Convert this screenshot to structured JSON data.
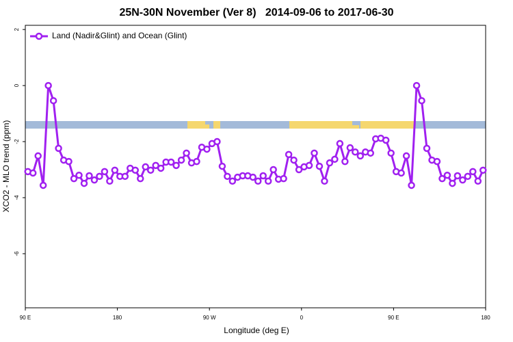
{
  "chart_data": {
    "type": "line",
    "title": "25N-30N November (Ver 8)   2014-09-06 to 2017-06-30",
    "xlabel": "Longitude (deg E)",
    "ylabel": "XCO2 - MLO trend (ppm)",
    "x": [
      92.5,
      97.5,
      102.5,
      107.5,
      112.5,
      117.5,
      122.5,
      127.5,
      132.5,
      137.5,
      142.5,
      147.5,
      152.5,
      157.5,
      162.5,
      167.5,
      172.5,
      177.5,
      182.5,
      187.5,
      192.5,
      197.5,
      202.5,
      207.5,
      212.5,
      217.5,
      222.5,
      227.5,
      232.5,
      237.5,
      242.5,
      247.5,
      252.5,
      257.5,
      262.5,
      267.5,
      272.5,
      277.5,
      282.5,
      287.5,
      292.5,
      297.5,
      302.5,
      307.5,
      312.5,
      317.5,
      322.5,
      327.5,
      332.5,
      337.5,
      342.5,
      347.5,
      352.5,
      357.5,
      362.5,
      367.5,
      372.5,
      377.5,
      382.5,
      387.5,
      392.5,
      397.5,
      402.5,
      407.5,
      412.5,
      417.5,
      422.5,
      427.5,
      432.5,
      437.5,
      442.5,
      447.5,
      452.5,
      457.5,
      462.5,
      467.5,
      472.5,
      477.5,
      482.5,
      487.5,
      492.5,
      497.5,
      502.5,
      507.5,
      512.5,
      517.5,
      522.5,
      527.5,
      532.5,
      537.5
    ],
    "series": [
      {
        "name": "Land (Nadir&Glint) and Ocean (Glint)",
        "color": "#a020f0",
        "values": [
          -3.07,
          -3.12,
          -2.51,
          -3.56,
          0,
          -0.54,
          -2.24,
          -2.66,
          -2.71,
          -3.32,
          -3.2,
          -3.49,
          -3.22,
          -3.37,
          -3.24,
          -3.07,
          -3.41,
          -3.02,
          -3.24,
          -3.24,
          -2.95,
          -3.02,
          -3.32,
          -2.9,
          -3.02,
          -2.85,
          -2.95,
          -2.73,
          -2.73,
          -2.85,
          -2.66,
          -2.41,
          -2.76,
          -2.71,
          -2.2,
          -2.27,
          -2.07,
          -2.0,
          -2.88,
          -3.24,
          -3.41,
          -3.27,
          -3.22,
          -3.22,
          -3.27,
          -3.41,
          -3.22,
          -3.41,
          -3.0,
          -3.34,
          -3.32,
          -2.46,
          -2.66,
          -3.0,
          -2.9,
          -2.85,
          -2.41,
          -2.88,
          -3.41,
          -2.76,
          -2.63,
          -2.07,
          -2.71,
          -2.22,
          -2.37,
          -2.51,
          -2.37,
          -2.41,
          -1.9,
          -1.88,
          -1.95,
          -2.41,
          -3.07,
          -3.12,
          -2.51,
          -3.56,
          0,
          -0.54,
          -2.24,
          -2.66,
          -2.71,
          -3.32,
          -3.2,
          -3.49,
          -3.22,
          -3.37,
          -3.24,
          -3.07,
          -3.41,
          -3.02
        ]
      }
    ],
    "xlim": [
      90,
      540
    ],
    "xticks": [
      {
        "value": 90,
        "label": "90 E"
      },
      180,
      {
        "value": 270,
        "label": "90 W"
      },
      {
        "value": 360,
        "label": "0"
      },
      {
        "value": 450,
        "label": "90 E"
      },
      {
        "value": 540,
        "label": "180"
      }
    ],
    "ylim": [
      -7.93,
      2.15
    ],
    "yticks": [
      2,
      0,
      -2,
      -4,
      -6
    ],
    "grid": false,
    "legend": "top-left"
  }
}
